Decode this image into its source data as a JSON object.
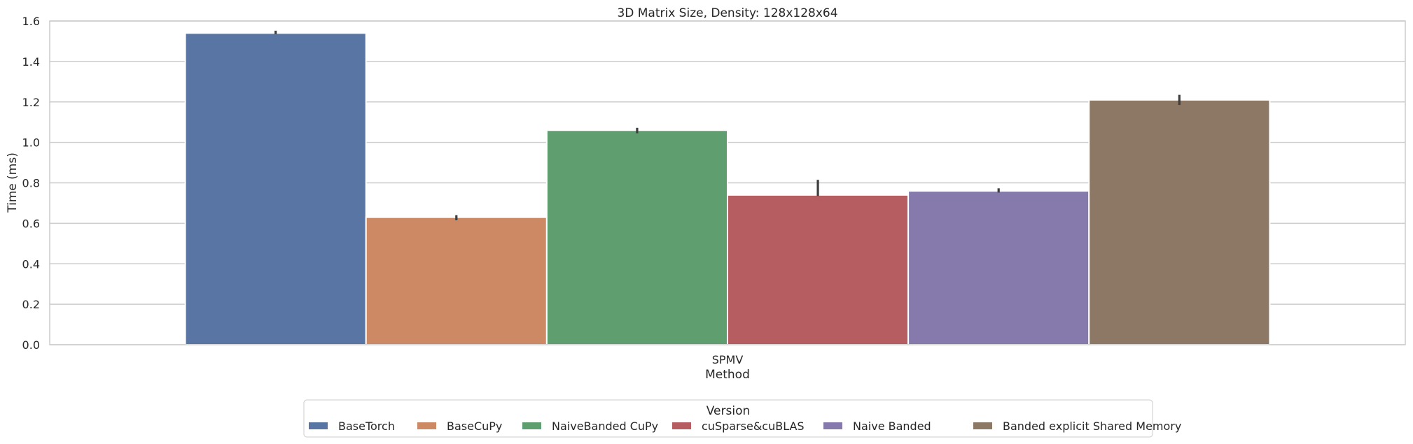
{
  "chart_data": {
    "type": "bar",
    "title": "3D Matrix Size, Density: 128x128x64",
    "xlabel": "Method",
    "ylabel": "Time (ms)",
    "categories": [
      "SPMV"
    ],
    "ylim": [
      0,
      1.6
    ],
    "yticks": [
      0.0,
      0.2,
      0.4,
      0.6,
      0.8,
      1.0,
      1.2,
      1.4,
      1.6
    ],
    "ytick_labels": [
      "0.0",
      "0.2",
      "0.4",
      "0.6",
      "0.8",
      "1.0",
      "1.2",
      "1.4",
      "1.6"
    ],
    "grid": true,
    "legend_title": "Version",
    "legend_position": "bottom-center",
    "series": [
      {
        "name": "BaseTorch",
        "values": [
          1.54
        ],
        "err": [
          1.535,
          1.552
        ],
        "color": "#5875a4"
      },
      {
        "name": "BaseCuPy",
        "values": [
          0.63
        ],
        "err": [
          0.615,
          0.64
        ],
        "color": "#cc8963"
      },
      {
        "name": "NaiveBanded CuPy",
        "values": [
          1.06
        ],
        "err": [
          1.045,
          1.072
        ],
        "color": "#5f9e6e"
      },
      {
        "name": "cuSparse&cuBLAS",
        "values": [
          0.74
        ],
        "err": [
          0.735,
          0.815
        ],
        "color": "#b55d60"
      },
      {
        "name": "Naive Banded",
        "values": [
          0.76
        ],
        "err": [
          0.752,
          0.773
        ],
        "color": "#857aab"
      },
      {
        "name": "Banded explicit Shared Memory",
        "values": [
          1.21
        ],
        "err": [
          1.185,
          1.235
        ],
        "color": "#8d7866"
      }
    ]
  }
}
